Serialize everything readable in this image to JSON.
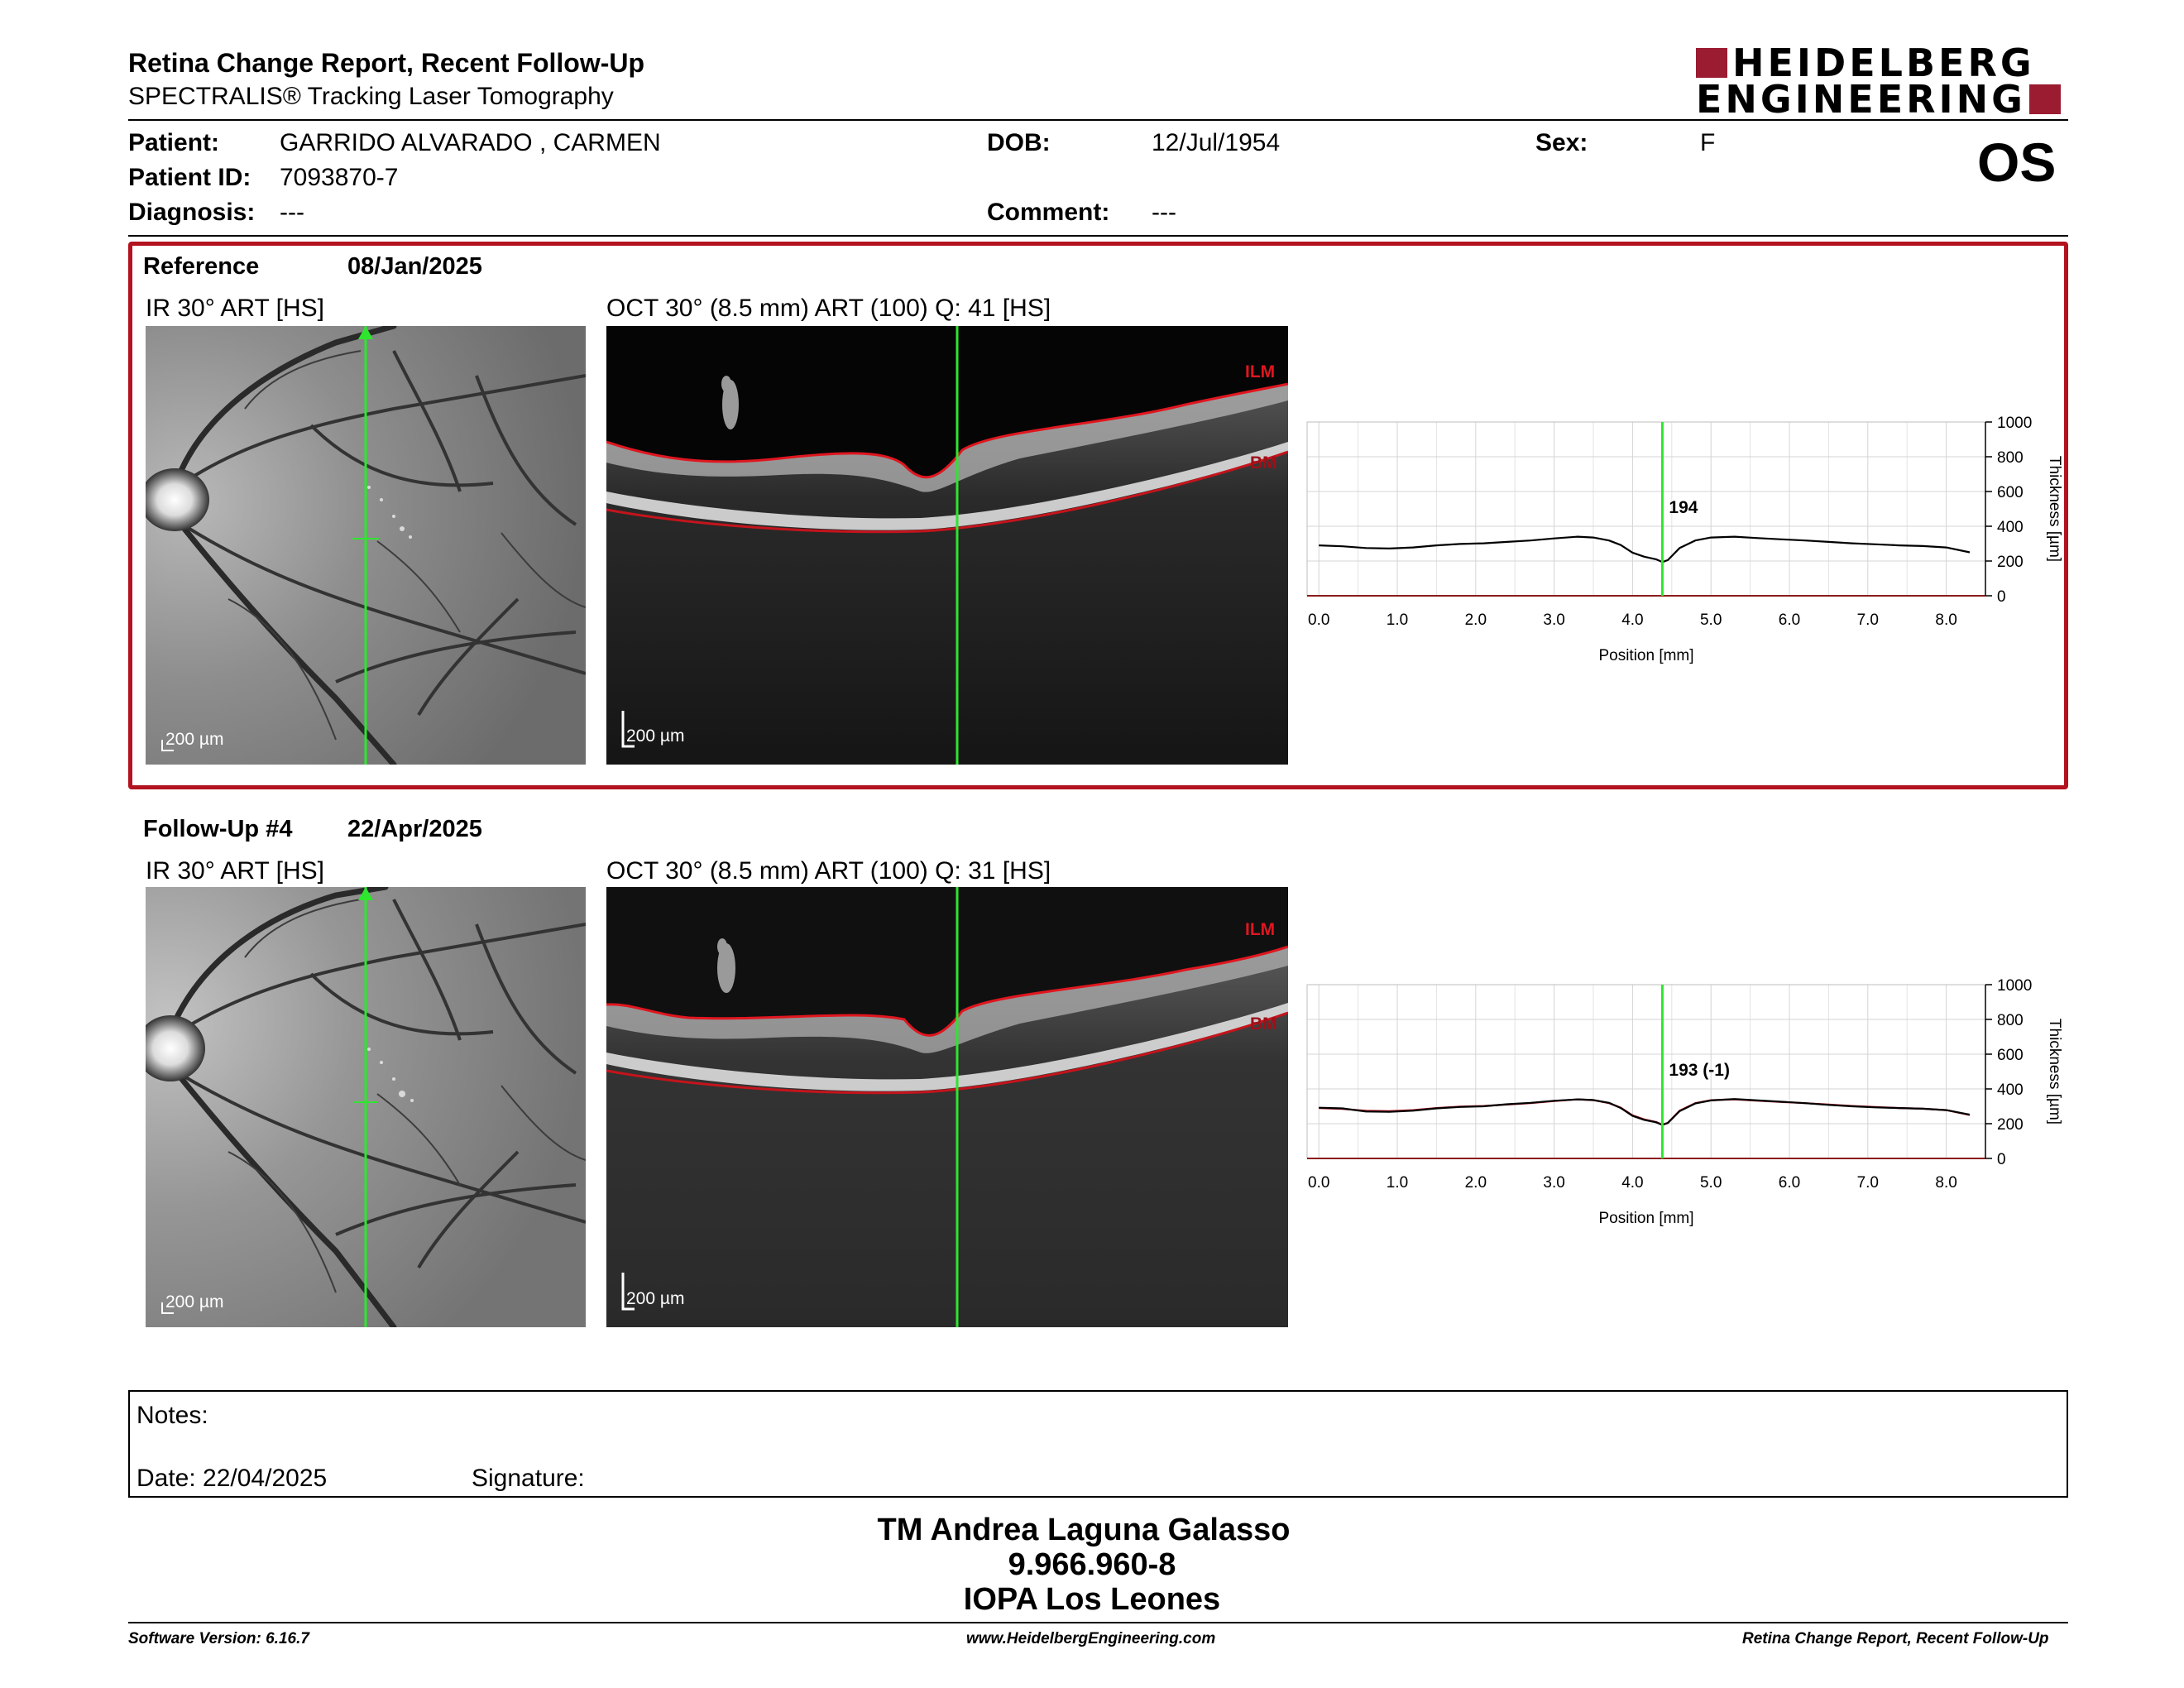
{
  "header": {
    "title": "Retina Change Report, Recent Follow-Up",
    "subtitle": "SPECTRALIS® Tracking Laser Tomography",
    "logo_line1": "HEIDELBERG",
    "logo_line2": "ENGINEERING",
    "eye": "OS"
  },
  "patient": {
    "patient_label": "Patient:",
    "patient_name": "GARRIDO ALVARADO , CARMEN",
    "id_label": "Patient ID:",
    "id_value": "7093870-7",
    "diagnosis_label": "Diagnosis:",
    "diagnosis_value": "---",
    "dob_label": "DOB:",
    "dob_value": "12/Jul/1954",
    "comment_label": "Comment:",
    "comment_value": "---",
    "sex_label": "Sex:",
    "sex_value": "F"
  },
  "reference": {
    "label": "Reference",
    "date": "08/Jan/2025",
    "ir_title": "IR 30° ART [HS]",
    "oct_title": "OCT 30° (8.5 mm) ART (100) Q: 41 [HS]",
    "scale_label": "200 µm",
    "ilm_label": "ILM",
    "bm_label": "BM"
  },
  "followup": {
    "label": "Follow-Up #4",
    "date": "22/Apr/2025",
    "ir_title": "IR 30° ART [HS]",
    "oct_title": "OCT 30° (8.5 mm) ART (100) Q: 31 [HS]",
    "scale_label": "200 µm",
    "ilm_label": "ILM",
    "bm_label": "BM"
  },
  "chart_data": [
    {
      "type": "line",
      "xlabel": "Position [mm]",
      "ylabel": "Thickness [µm]",
      "xlim": [
        -0.15,
        8.5
      ],
      "ylim": [
        0,
        1000
      ],
      "xticks": [
        0.0,
        1.0,
        2.0,
        3.0,
        4.0,
        5.0,
        6.0,
        7.0,
        8.0
      ],
      "xtick_labels": [
        "0.0",
        "1.0",
        "2.0",
        "3.0",
        "4.0",
        "5.0",
        "6.0",
        "7.0",
        "8.0"
      ],
      "yticks": [
        0,
        200,
        400,
        600,
        800,
        1000
      ],
      "ytick_labels": [
        "0",
        "200",
        "400",
        "600",
        "800",
        "1000"
      ],
      "grid": true,
      "marker_x": 4.38,
      "marker_label": "194",
      "series": [
        {
          "color": "#000000",
          "x": [
            0.0,
            0.3,
            0.6,
            0.9,
            1.2,
            1.5,
            1.8,
            2.1,
            2.4,
            2.7,
            3.0,
            3.3,
            3.5,
            3.7,
            3.85,
            4.0,
            4.15,
            4.3,
            4.38,
            4.45,
            4.6,
            4.8,
            5.0,
            5.3,
            5.6,
            5.9,
            6.2,
            6.5,
            6.8,
            7.1,
            7.4,
            7.7,
            8.0,
            8.3
          ],
          "y": [
            290,
            285,
            275,
            272,
            278,
            290,
            298,
            302,
            310,
            318,
            330,
            340,
            335,
            318,
            292,
            248,
            225,
            210,
            194,
            205,
            275,
            318,
            335,
            340,
            332,
            325,
            318,
            310,
            302,
            296,
            290,
            286,
            278,
            250
          ]
        }
      ]
    },
    {
      "type": "line",
      "xlabel": "Position [mm]",
      "ylabel": "Thickness [µm]",
      "xlim": [
        -0.15,
        8.5
      ],
      "ylim": [
        0,
        1000
      ],
      "xticks": [
        0.0,
        1.0,
        2.0,
        3.0,
        4.0,
        5.0,
        6.0,
        7.0,
        8.0
      ],
      "xtick_labels": [
        "0.0",
        "1.0",
        "2.0",
        "3.0",
        "4.0",
        "5.0",
        "6.0",
        "7.0",
        "8.0"
      ],
      "yticks": [
        0,
        200,
        400,
        600,
        800,
        1000
      ],
      "ytick_labels": [
        "0",
        "200",
        "400",
        "600",
        "800",
        "1000"
      ],
      "grid": true,
      "marker_x": 4.38,
      "marker_label": "193 (-1)",
      "series": [
        {
          "color": "#000000",
          "x": [
            0.0,
            0.3,
            0.6,
            0.9,
            1.2,
            1.5,
            1.8,
            2.1,
            2.4,
            2.7,
            3.0,
            3.3,
            3.5,
            3.7,
            3.85,
            4.0,
            4.15,
            4.3,
            4.38,
            4.45,
            4.6,
            4.8,
            5.0,
            5.3,
            5.6,
            5.9,
            6.2,
            6.5,
            6.8,
            7.1,
            7.4,
            7.7,
            8.0,
            8.3
          ],
          "y": [
            292,
            288,
            270,
            268,
            275,
            288,
            296,
            300,
            312,
            320,
            332,
            340,
            336,
            320,
            290,
            245,
            222,
            208,
            193,
            204,
            272,
            316,
            334,
            342,
            334,
            326,
            318,
            308,
            300,
            294,
            290,
            286,
            278,
            252
          ]
        },
        {
          "color": "#b3121f",
          "x": [
            0.0,
            0.3,
            0.6,
            0.9,
            1.2,
            1.5,
            1.8,
            2.1,
            2.4,
            2.7,
            3.0,
            3.3,
            3.5,
            3.7,
            3.85,
            4.0,
            4.15,
            4.3,
            4.38,
            4.45,
            4.6,
            4.8,
            5.0,
            5.3,
            5.6,
            5.9,
            6.2,
            6.5,
            6.8,
            7.1,
            7.4,
            7.7,
            8.0,
            8.3
          ],
          "y": [
            290,
            285,
            275,
            272,
            278,
            290,
            298,
            302,
            310,
            318,
            330,
            340,
            335,
            318,
            292,
            248,
            225,
            210,
            194,
            205,
            275,
            318,
            335,
            340,
            332,
            325,
            318,
            310,
            302,
            296,
            290,
            286,
            278,
            250
          ]
        }
      ]
    }
  ],
  "notes": {
    "label": "Notes:",
    "date_label": "Date: 22/04/2025",
    "signature_label": "Signature:"
  },
  "signer": {
    "name": "TM Andrea Laguna Galasso",
    "id": "9.966.960-8",
    "org": "IOPA Los Leones"
  },
  "footer": {
    "version": "Software Version: 6.16.7",
    "website": "www.HeidelbergEngineering.com",
    "report": "Retina Change Report, Recent Follow-Up"
  }
}
